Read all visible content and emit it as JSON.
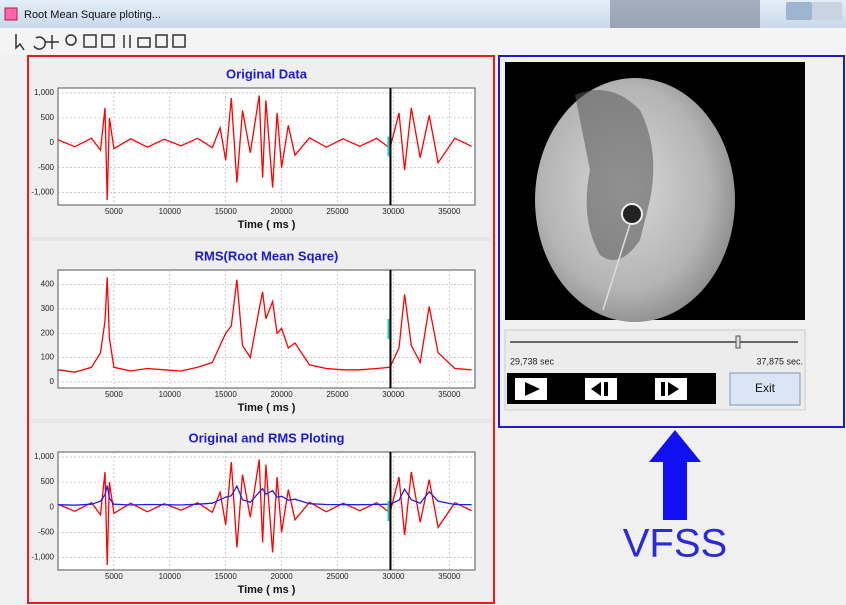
{
  "window": {
    "title": "Root Mean Square ploting..."
  },
  "chart_data": [
    {
      "type": "line",
      "title": "Original Data",
      "xlabel": "Time ( ms )",
      "color": "#ff0000",
      "grid": true,
      "xlim": [
        0,
        37300
      ],
      "ylim": [
        -1250,
        1100
      ],
      "xticks": [
        5000,
        10000,
        15000,
        20000,
        25000,
        30000,
        35000
      ],
      "yticks": [
        {
          "value": 1000,
          "label": "1,000"
        },
        500,
        0,
        -500,
        {
          "value": -1000,
          "label": "-1,000"
        }
      ],
      "cursor_x": 29738,
      "x": [
        0,
        1500,
        3000,
        3800,
        4200,
        4400,
        4600,
        5000,
        6500,
        8000,
        9500,
        11000,
        12500,
        13800,
        14500,
        15000,
        15500,
        16000,
        16500,
        17200,
        18000,
        18300,
        18600,
        19200,
        19600,
        20000,
        20600,
        21200,
        22500,
        24000,
        25500,
        27000,
        28500,
        29700,
        30500,
        31000,
        31600,
        32400,
        33200,
        34000,
        35500,
        37000
      ],
      "values": [
        60,
        -80,
        90,
        -150,
        700,
        -1150,
        500,
        -120,
        80,
        -90,
        70,
        -60,
        90,
        -100,
        300,
        -350,
        900,
        -800,
        650,
        -200,
        950,
        -700,
        850,
        -900,
        600,
        -500,
        350,
        -250,
        100,
        -90,
        80,
        -70,
        90,
        -110,
        600,
        -550,
        700,
        -300,
        550,
        -400,
        90,
        -70
      ]
    },
    {
      "type": "line",
      "title": "RMS(Root Mean Sqare)",
      "xlabel": "Time ( ms )",
      "color": "#ff0000",
      "grid": true,
      "xlim": [
        0,
        37300
      ],
      "ylim": [
        -25,
        460
      ],
      "xticks": [
        5000,
        10000,
        15000,
        20000,
        25000,
        30000,
        35000
      ],
      "yticks": [
        400,
        300,
        200,
        100,
        0
      ],
      "cursor_x": 29738,
      "x": [
        0,
        1500,
        3000,
        3800,
        4200,
        4400,
        4600,
        5000,
        6500,
        8000,
        9500,
        11000,
        12500,
        13800,
        14500,
        15000,
        15500,
        16000,
        16500,
        17200,
        18000,
        18300,
        18600,
        19200,
        19600,
        20000,
        20600,
        21200,
        22500,
        24000,
        25500,
        27000,
        28500,
        29700,
        30500,
        31000,
        31600,
        32400,
        33200,
        34000,
        35500,
        37000
      ],
      "values": [
        50,
        40,
        60,
        120,
        250,
        430,
        180,
        60,
        45,
        55,
        50,
        45,
        60,
        80,
        150,
        200,
        230,
        420,
        150,
        100,
        300,
        370,
        260,
        330,
        200,
        220,
        140,
        160,
        70,
        55,
        50,
        50,
        55,
        60,
        140,
        360,
        150,
        80,
        310,
        120,
        55,
        50
      ]
    },
    {
      "type": "line",
      "title": "Original and RMS Ploting",
      "xlabel": "Time ( ms )",
      "grid": true,
      "xlim": [
        0,
        37300
      ],
      "ylim": [
        -1250,
        1100
      ],
      "xticks": [
        5000,
        10000,
        15000,
        20000,
        25000,
        30000,
        35000
      ],
      "yticks": [
        {
          "value": 1000,
          "label": "1,000"
        },
        500,
        0,
        -500,
        {
          "value": -1000,
          "label": "-1,000"
        }
      ],
      "cursor_x": 29738,
      "x": [
        0,
        1500,
        3000,
        3800,
        4200,
        4400,
        4600,
        5000,
        6500,
        8000,
        9500,
        11000,
        12500,
        13800,
        14500,
        15000,
        15500,
        16000,
        16500,
        17200,
        18000,
        18300,
        18600,
        19200,
        19600,
        20000,
        20600,
        21200,
        22500,
        24000,
        25500,
        27000,
        28500,
        29700,
        30500,
        31000,
        31600,
        32400,
        33200,
        34000,
        35500,
        37000
      ],
      "series": [
        {
          "color": "#ff0000",
          "values": [
            60,
            -80,
            90,
            -150,
            700,
            -1150,
            500,
            -120,
            80,
            -90,
            70,
            -60,
            90,
            -100,
            300,
            -350,
            900,
            -800,
            650,
            -200,
            950,
            -700,
            850,
            -900,
            600,
            -500,
            350,
            -250,
            100,
            -90,
            80,
            -70,
            90,
            -110,
            600,
            -550,
            700,
            -300,
            550,
            -400,
            90,
            -70
          ]
        },
        {
          "color": "#2020e0",
          "values": [
            50,
            40,
            60,
            120,
            250,
            430,
            180,
            60,
            45,
            55,
            50,
            45,
            60,
            80,
            150,
            200,
            230,
            420,
            150,
            100,
            300,
            370,
            260,
            330,
            200,
            220,
            140,
            160,
            70,
            55,
            50,
            50,
            55,
            60,
            140,
            360,
            150,
            80,
            310,
            120,
            55,
            50
          ]
        }
      ]
    }
  ],
  "video": {
    "position_label": "29,738 sec",
    "duration_label": "37,875 sec.",
    "exit_button": "Exit"
  },
  "annotation": "VFSS"
}
